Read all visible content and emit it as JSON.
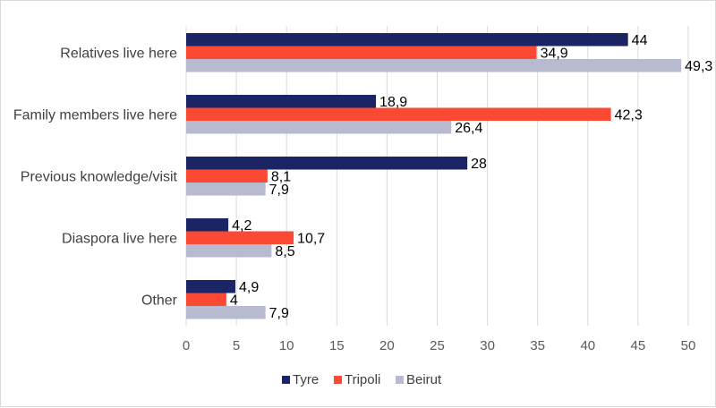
{
  "chart_data": {
    "type": "bar",
    "orientation": "horizontal",
    "categories": [
      "Relatives live here",
      "Family members live here",
      "Previous knowledge/visit",
      "Diaspora live here",
      "Other"
    ],
    "series": [
      {
        "name": "Tyre",
        "color": "#1b2565",
        "values": [
          44,
          18.9,
          28,
          4.2,
          4.9
        ],
        "labels": [
          "44",
          "18,9",
          "28",
          "4,2",
          "4,9"
        ]
      },
      {
        "name": "Tripoli",
        "color": "#fb4934",
        "values": [
          34.9,
          42.3,
          8.1,
          10.7,
          4
        ],
        "labels": [
          "34,9",
          "42,3",
          "8,1",
          "10,7",
          "4"
        ]
      },
      {
        "name": "Beirut",
        "color": "#b8bacf",
        "values": [
          49.3,
          26.4,
          7.9,
          8.5,
          7.9
        ],
        "labels": [
          "49,3",
          "26,4",
          "7,9",
          "8,5",
          "7,9"
        ]
      }
    ],
    "xlim": [
      0,
      50
    ],
    "xticks": [
      0,
      5,
      10,
      15,
      20,
      25,
      30,
      35,
      40,
      45,
      50
    ],
    "grid": "vertical",
    "legend": "bottom",
    "title": "",
    "xlabel": "",
    "ylabel": ""
  }
}
